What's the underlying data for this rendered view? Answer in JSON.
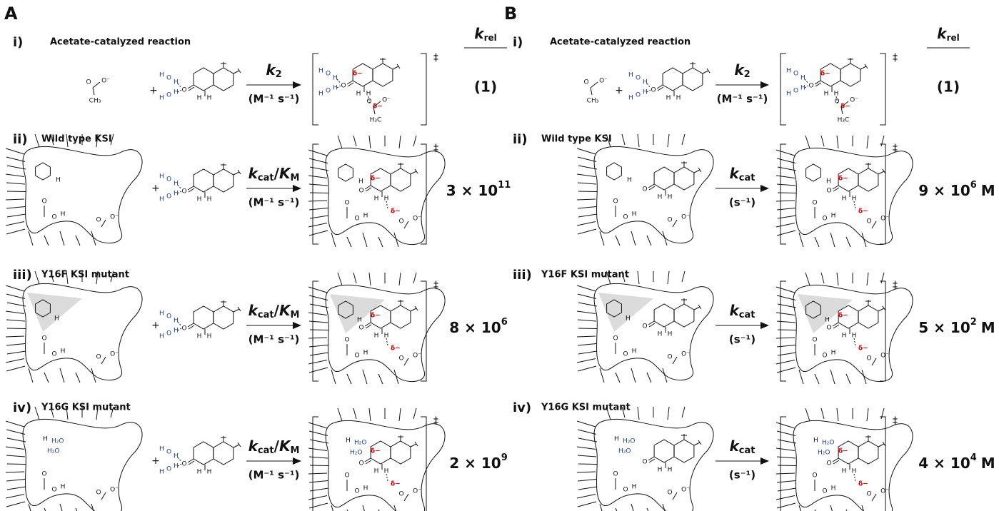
{
  "panels": [
    {
      "label": "A",
      "header": {
        "symbol": "k",
        "subscript": "rel"
      },
      "rows": [
        {
          "numeral": "i)",
          "title": "Acetate-catalyzed reaction",
          "constant": {
            "symbol": "k",
            "subscript": "2",
            "units": "(M⁻¹ s⁻¹)"
          },
          "krel": {
            "text": "(1)"
          }
        },
        {
          "numeral": "ii)",
          "title": "Wild type KSI",
          "constant": {
            "symbol": "k",
            "subscript": "cat",
            "slash": "/",
            "symbol2": "K",
            "subscript2": "M",
            "units": "(M⁻¹ s⁻¹)"
          },
          "krel": {
            "base": "3 × 10",
            "exponent": "11"
          }
        },
        {
          "numeral": "iii)",
          "title": "Y16F KSI mutant",
          "constant": {
            "symbol": "k",
            "subscript": "cat",
            "slash": "/",
            "symbol2": "K",
            "subscript2": "M",
            "units": "(M⁻¹ s⁻¹)"
          },
          "krel": {
            "base": "8 × 10",
            "exponent": "6"
          }
        },
        {
          "numeral": "iv)",
          "title": "Y16G KSI mutant",
          "constant": {
            "symbol": "k",
            "subscript": "cat",
            "slash": "/",
            "symbol2": "K",
            "subscript2": "M",
            "units": "(M⁻¹ s⁻¹)"
          },
          "krel": {
            "base": "2 × 10",
            "exponent": "9"
          }
        }
      ]
    },
    {
      "label": "B",
      "header": {
        "symbol": "k",
        "subscript": "rel"
      },
      "rows": [
        {
          "numeral": "i)",
          "title": "Acetate-catalyzed reaction",
          "constant": {
            "symbol": "k",
            "subscript": "2",
            "units": "(M⁻¹ s⁻¹)"
          },
          "krel": {
            "text": "(1)"
          }
        },
        {
          "numeral": "ii)",
          "title": "Wild type KSI",
          "constant": {
            "symbol": "k",
            "subscript": "cat",
            "units": "(s⁻¹)"
          },
          "krel": {
            "base": "9 × 10",
            "exponent": "6",
            "unit": "M"
          }
        },
        {
          "numeral": "iii)",
          "title": "Y16F KSI mutant",
          "constant": {
            "symbol": "k",
            "subscript": "cat",
            "units": "(s⁻¹)"
          },
          "krel": {
            "base": "5 × 10",
            "exponent": "2",
            "unit": "M"
          }
        },
        {
          "numeral": "iv)",
          "title": "Y16G KSI mutant",
          "constant": {
            "symbol": "k",
            "subscript": "cat",
            "units": "(s⁻¹)"
          },
          "krel": {
            "base": "4 × 10",
            "exponent": "4",
            "unit": "M"
          }
        }
      ]
    }
  ],
  "glyphs": {
    "plus": "+",
    "dagger": "‡",
    "h": "H",
    "o": "O",
    "ominus": "O⁻",
    "ch3": "CH₃",
    "h3c": "H₃C",
    "delta": "δ−",
    "h2o": "H₂O"
  }
}
